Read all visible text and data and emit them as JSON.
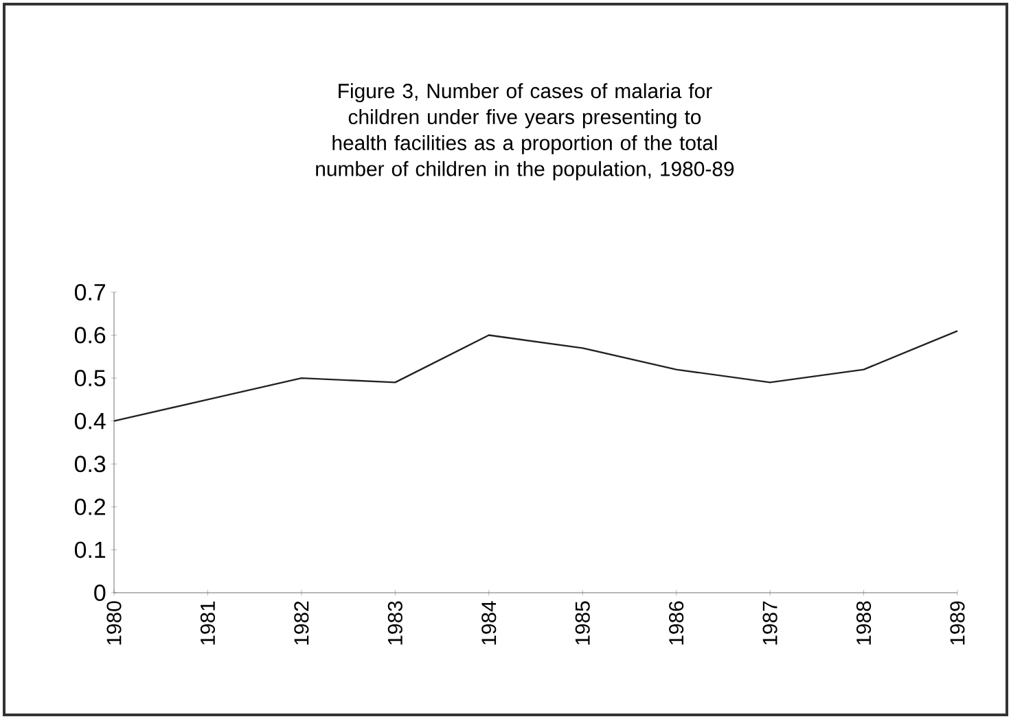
{
  "chart_data": {
    "type": "line",
    "title": "Figure 3, Number of cases of malaria for children under five years presenting to health facilities as a proportion of the total number of children in the population, 1980-89",
    "categories": [
      "1980",
      "1981",
      "1982",
      "1983",
      "1984",
      "1985",
      "1986",
      "1987",
      "1988",
      "1989"
    ],
    "series": [
      {
        "color": "#222222",
        "values": [
          0.4,
          0.45,
          0.5,
          0.49,
          0.6,
          0.57,
          0.52,
          0.49,
          0.52,
          0.61
        ]
      }
    ],
    "ylim": [
      0,
      0.7
    ],
    "yticks": [
      0,
      0.1,
      0.2,
      0.3,
      0.4,
      0.5,
      0.6,
      0.7
    ],
    "grid": false,
    "marker": "none",
    "line_style": "solid"
  }
}
